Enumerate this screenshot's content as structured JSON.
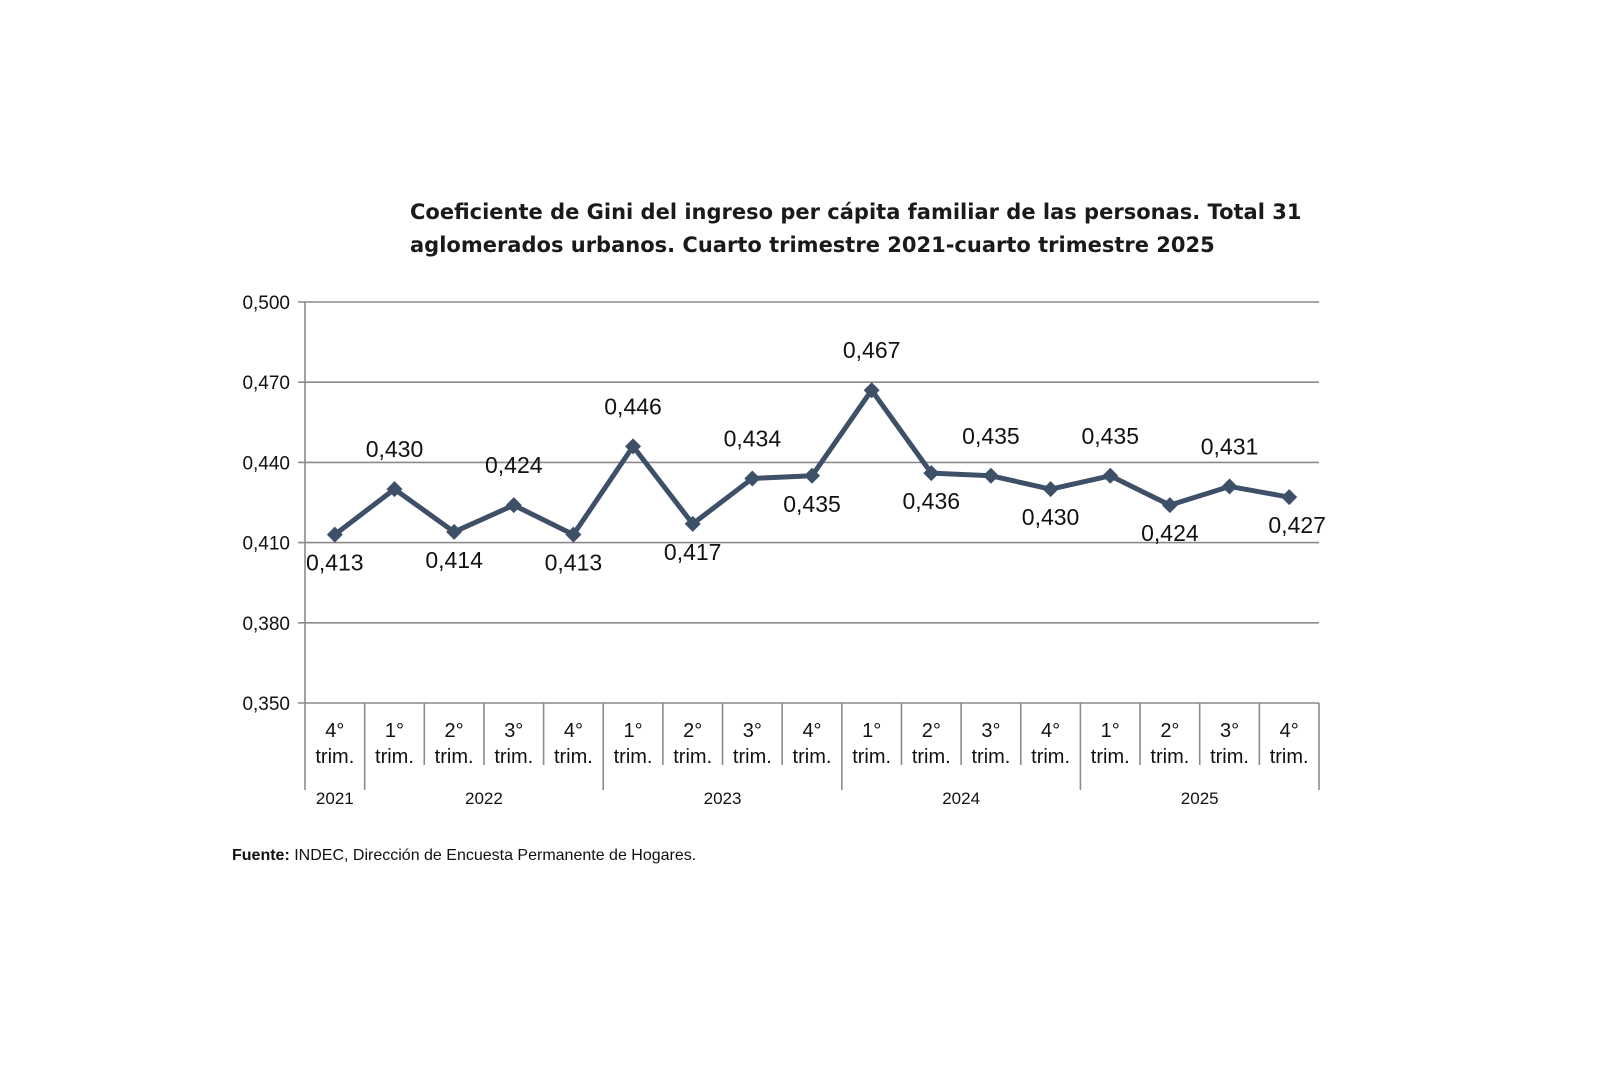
{
  "chart_data": {
    "type": "line",
    "title": "Coeficiente de Gini del ingreso per cápita familiar de las personas. Total 31 aglomerados urbanos. Cuarto trimestre 2021-cuarto trimestre 2025",
    "categories": [
      {
        "quarter": "4°",
        "sub": "trim.",
        "year": "2021"
      },
      {
        "quarter": "1°",
        "sub": "trim.",
        "year": "2022"
      },
      {
        "quarter": "2°",
        "sub": "trim.",
        "year": "2022"
      },
      {
        "quarter": "3°",
        "sub": "trim.",
        "year": "2022"
      },
      {
        "quarter": "4°",
        "sub": "trim.",
        "year": "2022"
      },
      {
        "quarter": "1°",
        "sub": "trim.",
        "year": "2023"
      },
      {
        "quarter": "2°",
        "sub": "trim.",
        "year": "2023"
      },
      {
        "quarter": "3°",
        "sub": "trim.",
        "year": "2023"
      },
      {
        "quarter": "4°",
        "sub": "trim.",
        "year": "2023"
      },
      {
        "quarter": "1°",
        "sub": "trim.",
        "year": "2024"
      },
      {
        "quarter": "2°",
        "sub": "trim.",
        "year": "2024"
      },
      {
        "quarter": "3°",
        "sub": "trim.",
        "year": "2024"
      },
      {
        "quarter": "4°",
        "sub": "trim.",
        "year": "2024"
      },
      {
        "quarter": "1°",
        "sub": "trim.",
        "year": "2025"
      },
      {
        "quarter": "2°",
        "sub": "trim.",
        "year": "2025"
      },
      {
        "quarter": "3°",
        "sub": "trim.",
        "year": "2025"
      },
      {
        "quarter": "4°",
        "sub": "trim.",
        "year": "2025"
      }
    ],
    "years": [
      "2021",
      "2022",
      "2023",
      "2024",
      "2025"
    ],
    "values": [
      0.413,
      0.43,
      0.414,
      0.424,
      0.413,
      0.446,
      0.417,
      0.434,
      0.435,
      0.467,
      0.436,
      0.435,
      0.43,
      0.435,
      0.424,
      0.431,
      0.427
    ],
    "data_labels": [
      "0,413",
      "0,430",
      "0,414",
      "0,424",
      "0,413",
      "0,446",
      "0,417",
      "0,434",
      "0,435",
      "0,467",
      "0,436",
      "0,435",
      "0,430",
      "0,435",
      "0,424",
      "0,431",
      "0,427"
    ],
    "yticks": [
      0.35,
      0.38,
      0.41,
      0.44,
      0.47,
      0.5
    ],
    "ytick_labels": [
      "0,350",
      "0,380",
      "0,410",
      "0,440",
      "0,470",
      "0,500"
    ],
    "ylim": [
      0.35,
      0.5
    ],
    "grid": true,
    "marker": "diamond",
    "line_color": "#3d5068",
    "xlabel": "",
    "ylabel": ""
  },
  "source": {
    "label": "Fuente:",
    "text": " INDEC, Dirección de Encuesta Permanente de Hogares."
  }
}
